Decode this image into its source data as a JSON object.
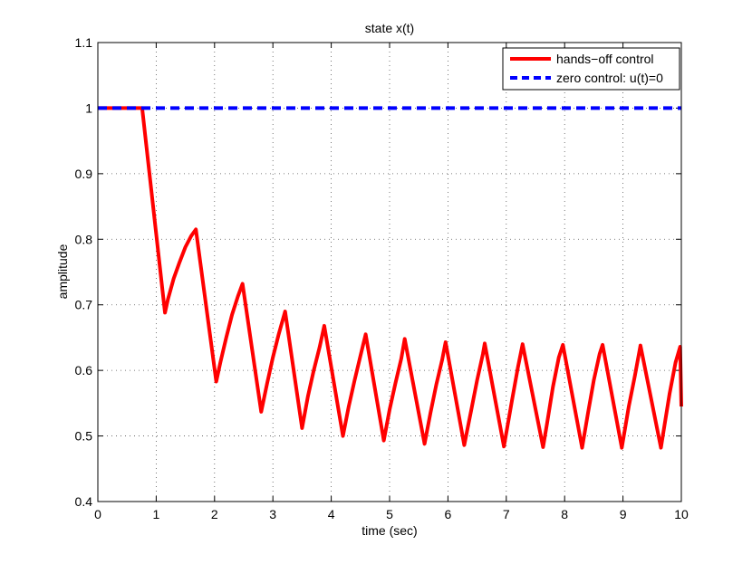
{
  "chart_data": {
    "type": "line",
    "title": "state x(t)",
    "xlabel": "time (sec)",
    "ylabel": "amplitude",
    "xlim": [
      0,
      10
    ],
    "ylim": [
      0.4,
      1.1
    ],
    "x_ticks": [
      0,
      1,
      2,
      3,
      4,
      5,
      6,
      7,
      8,
      9,
      10
    ],
    "y_ticks": [
      0.4,
      0.5,
      0.6,
      0.7,
      0.8,
      0.9,
      1.0,
      1.1
    ],
    "x_tick_labels": [
      "0",
      "1",
      "2",
      "3",
      "4",
      "5",
      "6",
      "7",
      "8",
      "9",
      "10"
    ],
    "y_tick_labels": [
      "0.4",
      "0.5",
      "0.6",
      "0.7",
      "0.8",
      "0.9",
      "1",
      "1.1"
    ],
    "grid": true,
    "legend_position": "top-right",
    "series": [
      {
        "name": "hands−off control",
        "color": "#ff0000",
        "line_style": "solid",
        "x": [
          0,
          0.76,
          1.15,
          1.2,
          1.3,
          1.4,
          1.5,
          1.6,
          1.68,
          2.03,
          2.1,
          2.2,
          2.3,
          2.4,
          2.48,
          2.8,
          2.9,
          3.0,
          3.1,
          3.21,
          3.5,
          3.6,
          3.7,
          3.8,
          3.88,
          4.2,
          4.3,
          4.4,
          4.5,
          4.59,
          4.9,
          5.0,
          5.1,
          5.2,
          5.26,
          5.6,
          5.7,
          5.8,
          5.9,
          5.96,
          6.28,
          6.4,
          6.5,
          6.6,
          6.63,
          6.96,
          7.1,
          7.2,
          7.28,
          7.63,
          7.7,
          7.8,
          7.9,
          7.97,
          8.3,
          8.4,
          8.5,
          8.6,
          8.65,
          8.98,
          9.1,
          9.2,
          9.3,
          9.65,
          9.7,
          9.8,
          9.9,
          9.98,
          10.0
        ],
        "y": [
          1.0,
          1.0,
          0.688,
          0.708,
          0.74,
          0.765,
          0.788,
          0.805,
          0.815,
          0.583,
          0.612,
          0.65,
          0.685,
          0.713,
          0.732,
          0.537,
          0.58,
          0.62,
          0.655,
          0.69,
          0.512,
          0.56,
          0.6,
          0.635,
          0.668,
          0.5,
          0.545,
          0.585,
          0.622,
          0.655,
          0.493,
          0.54,
          0.58,
          0.618,
          0.648,
          0.488,
          0.535,
          0.578,
          0.616,
          0.643,
          0.486,
          0.54,
          0.585,
          0.625,
          0.641,
          0.484,
          0.555,
          0.605,
          0.64,
          0.483,
          0.52,
          0.575,
          0.62,
          0.639,
          0.482,
          0.535,
          0.585,
          0.625,
          0.639,
          0.482,
          0.545,
          0.59,
          0.638,
          0.482,
          0.51,
          0.565,
          0.612,
          0.636,
          0.545
        ]
      },
      {
        "name": "zero control: u(t)=0",
        "color": "#0000ff",
        "line_style": "dashed",
        "x": [
          0,
          10
        ],
        "y": [
          1.0,
          1.0
        ]
      }
    ]
  }
}
